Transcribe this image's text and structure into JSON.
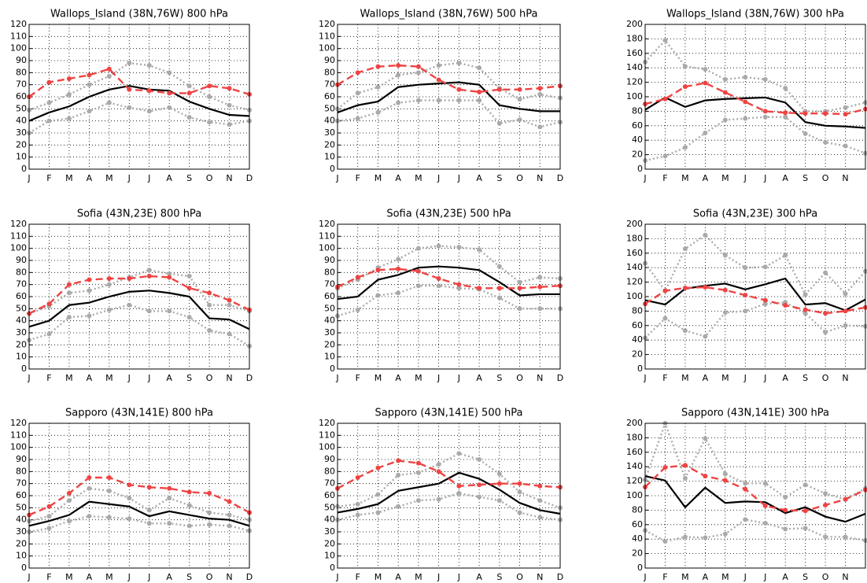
{
  "chart_data": [
    {
      "type": "line",
      "title": "Wallops_Island (38N,76W) 800 hPa",
      "categories": [
        "J",
        "F",
        "M",
        "A",
        "M",
        "J",
        "J",
        "A",
        "S",
        "O",
        "N",
        "D"
      ],
      "ylim": [
        0,
        120
      ],
      "yticks": [
        0,
        10,
        20,
        30,
        40,
        50,
        60,
        70,
        80,
        90,
        100,
        110,
        120
      ],
      "grid": true,
      "series": [
        {
          "color": "#aaaaaa",
          "style": "dotted",
          "markers": true,
          "values": [
            49,
            55,
            62,
            70,
            77,
            88,
            86,
            80,
            69,
            60,
            53,
            49
          ]
        },
        {
          "color": "#aaaaaa",
          "style": "dotted",
          "markers": true,
          "values": [
            30,
            40,
            42,
            48,
            55,
            51,
            48,
            51,
            43,
            39,
            37,
            40
          ]
        },
        {
          "color": "#000000",
          "style": "solid",
          "markers": false,
          "values": [
            40,
            47,
            52,
            60,
            66,
            69,
            66,
            65,
            56,
            50,
            45,
            44
          ]
        },
        {
          "color": "#ee4444",
          "style": "dashed",
          "markers": true,
          "values": [
            60,
            72,
            75,
            78,
            83,
            66,
            65,
            63,
            63,
            69,
            67,
            62
          ]
        }
      ]
    },
    {
      "type": "line",
      "title": "Wallops_Island (38N,76W) 500 hPa",
      "categories": [
        "J",
        "F",
        "M",
        "A",
        "M",
        "J",
        "J",
        "A",
        "S",
        "O",
        "N",
        "D"
      ],
      "ylim": [
        0,
        120
      ],
      "yticks": [
        0,
        10,
        20,
        30,
        40,
        50,
        60,
        70,
        80,
        90,
        100,
        110,
        120
      ],
      "grid": true,
      "series": [
        {
          "color": "#aaaaaa",
          "style": "dotted",
          "markers": true,
          "values": [
            50,
            63,
            68,
            78,
            80,
            86,
            88,
            84,
            67,
            58,
            62,
            59
          ]
        },
        {
          "color": "#aaaaaa",
          "style": "dotted",
          "markers": true,
          "values": [
            40,
            42,
            47,
            55,
            57,
            57,
            57,
            57,
            38,
            41,
            35,
            39
          ]
        },
        {
          "color": "#000000",
          "style": "solid",
          "markers": false,
          "values": [
            47,
            53,
            56,
            68,
            70,
            71,
            72,
            70,
            53,
            50,
            48,
            48
          ]
        },
        {
          "color": "#ee4444",
          "style": "dashed",
          "markers": true,
          "values": [
            70,
            80,
            85,
            86,
            85,
            74,
            66,
            64,
            66,
            66,
            67,
            69
          ]
        }
      ]
    },
    {
      "type": "line",
      "title": "Wallops_Island (38N,76W) 300 hPa",
      "categories": [
        "J",
        "F",
        "M",
        "A",
        "M",
        "J",
        "J",
        "A",
        "S",
        "O",
        "N",
        null
      ],
      "ylim": [
        0,
        200
      ],
      "yticks": [
        0,
        20,
        40,
        60,
        80,
        100,
        120,
        140,
        160,
        180,
        200
      ],
      "grid": true,
      "series": [
        {
          "color": "#aaaaaa",
          "style": "dotted",
          "markers": true,
          "values": [
            148,
            178,
            142,
            138,
            124,
            127,
            124,
            112,
            80,
            80,
            85,
            92
          ]
        },
        {
          "color": "#aaaaaa",
          "style": "dotted",
          "markers": true,
          "values": [
            12,
            18,
            30,
            50,
            68,
            70,
            72,
            72,
            49,
            37,
            32,
            22
          ]
        },
        {
          "color": "#000000",
          "style": "solid",
          "markers": false,
          "values": [
            82,
            99,
            86,
            95,
            97,
            98,
            99,
            92,
            65,
            60,
            59,
            57
          ]
        },
        {
          "color": "#ee4444",
          "style": "dashed",
          "markers": true,
          "values": [
            90,
            97,
            114,
            119,
            106,
            93,
            80,
            78,
            77,
            77,
            76,
            83
          ]
        }
      ]
    },
    {
      "type": "line",
      "title": "Sofia (43N,23E) 800 hPa",
      "categories": [
        "J",
        "F",
        "M",
        "A",
        "M",
        "J",
        "J",
        "A",
        "S",
        "O",
        "N",
        "D"
      ],
      "ylim": [
        0,
        120
      ],
      "yticks": [
        0,
        10,
        20,
        30,
        40,
        50,
        60,
        70,
        80,
        90,
        100,
        110,
        120
      ],
      "grid": true,
      "series": [
        {
          "color": "#aaaaaa",
          "style": "dotted",
          "markers": true,
          "values": [
            46,
            52,
            63,
            65,
            70,
            76,
            82,
            79,
            77,
            53,
            53,
            48
          ]
        },
        {
          "color": "#aaaaaa",
          "style": "dotted",
          "markers": true,
          "values": [
            24,
            29,
            43,
            44,
            49,
            53,
            48,
            48,
            43,
            32,
            29,
            19
          ]
        },
        {
          "color": "#000000",
          "style": "solid",
          "markers": false,
          "values": [
            35,
            40,
            53,
            55,
            60,
            64,
            65,
            63,
            60,
            42,
            41,
            33
          ]
        },
        {
          "color": "#ee4444",
          "style": "dashed",
          "markers": true,
          "values": [
            46,
            54,
            70,
            74,
            75,
            75,
            77,
            76,
            67,
            63,
            57,
            49
          ]
        }
      ]
    },
    {
      "type": "line",
      "title": "Sofia (43N,23E) 500 hPa",
      "categories": [
        "J",
        "F",
        "M",
        "A",
        "M",
        "J",
        "J",
        "A",
        "S",
        "O",
        "N",
        "D"
      ],
      "ylim": [
        0,
        120
      ],
      "yticks": [
        0,
        10,
        20,
        30,
        40,
        50,
        60,
        70,
        80,
        90,
        100,
        110,
        120
      ],
      "grid": true,
      "series": [
        {
          "color": "#aaaaaa",
          "style": "dotted",
          "markers": true,
          "values": [
            67,
            74,
            84,
            91,
            100,
            102,
            101,
            99,
            85,
            72,
            76,
            75
          ]
        },
        {
          "color": "#aaaaaa",
          "style": "dotted",
          "markers": true,
          "values": [
            44,
            49,
            61,
            63,
            69,
            69,
            67,
            66,
            59,
            50,
            50,
            50
          ]
        },
        {
          "color": "#000000",
          "style": "solid",
          "markers": false,
          "values": [
            58,
            60,
            74,
            78,
            84,
            85,
            84,
            82,
            72,
            61,
            62,
            62
          ]
        },
        {
          "color": "#ee4444",
          "style": "dashed",
          "markers": true,
          "values": [
            68,
            76,
            82,
            83,
            81,
            75,
            70,
            67,
            67,
            67,
            68,
            69
          ]
        }
      ]
    },
    {
      "type": "line",
      "title": "Sofia (43N,23E) 300 hPa",
      "categories": [
        "J",
        "F",
        "M",
        "A",
        "M",
        "J",
        "J",
        "A",
        "S",
        "O",
        "N",
        null
      ],
      "ylim": [
        0,
        200
      ],
      "yticks": [
        0,
        20,
        40,
        60,
        80,
        100,
        120,
        140,
        160,
        180,
        200
      ],
      "grid": true,
      "series": [
        {
          "color": "#aaaaaa",
          "style": "dotted",
          "markers": true,
          "values": [
            146,
            108,
            166,
            185,
            157,
            140,
            141,
            157,
            103,
            133,
            104,
            135
          ]
        },
        {
          "color": "#aaaaaa",
          "style": "dotted",
          "markers": true,
          "values": [
            43,
            70,
            53,
            45,
            78,
            80,
            90,
            92,
            77,
            51,
            60,
            59
          ]
        },
        {
          "color": "#000000",
          "style": "solid",
          "markers": false,
          "values": [
            95,
            89,
            111,
            115,
            118,
            110,
            117,
            125,
            89,
            91,
            81,
            96
          ]
        },
        {
          "color": "#ee4444",
          "style": "dashed",
          "markers": true,
          "values": [
            90,
            108,
            112,
            113,
            109,
            102,
            95,
            88,
            82,
            77,
            80,
            85
          ]
        }
      ]
    },
    {
      "type": "line",
      "title": "Sapporo (43N,141E) 800 hPa",
      "categories": [
        "J",
        "F",
        "M",
        "A",
        "M",
        "J",
        "J",
        "A",
        "S",
        "O",
        "N",
        "D"
      ],
      "ylim": [
        0,
        120
      ],
      "yticks": [
        0,
        10,
        20,
        30,
        40,
        50,
        60,
        70,
        80,
        90,
        100,
        110,
        120
      ],
      "grid": true,
      "series": [
        {
          "color": "#aaaaaa",
          "style": "dotted",
          "markers": true,
          "values": [
            39,
            43,
            56,
            66,
            64,
            58,
            48,
            58,
            52,
            46,
            44,
            40
          ]
        },
        {
          "color": "#aaaaaa",
          "style": "dotted",
          "markers": true,
          "values": [
            30,
            33,
            39,
            43,
            42,
            41,
            37,
            37,
            35,
            36,
            35,
            31
          ]
        },
        {
          "color": "#000000",
          "style": "solid",
          "markers": false,
          "values": [
            35,
            39,
            44,
            55,
            53,
            51,
            43,
            47,
            44,
            41,
            40,
            35
          ]
        },
        {
          "color": "#ee4444",
          "style": "dashed",
          "markers": true,
          "values": [
            44,
            51,
            62,
            75,
            75,
            69,
            67,
            66,
            63,
            62,
            55,
            46
          ]
        }
      ]
    },
    {
      "type": "line",
      "title": "Sapporo (43N,141E) 500 hPa",
      "categories": [
        "J",
        "F",
        "M",
        "A",
        "M",
        "J",
        "J",
        "A",
        "S",
        "O",
        "N",
        "D"
      ],
      "ylim": [
        0,
        120
      ],
      "yticks": [
        0,
        10,
        20,
        30,
        40,
        50,
        60,
        70,
        80,
        90,
        100,
        110,
        120
      ],
      "grid": true,
      "series": [
        {
          "color": "#aaaaaa",
          "style": "dotted",
          "markers": true,
          "values": [
            51,
            53,
            61,
            77,
            79,
            86,
            95,
            90,
            78,
            63,
            56,
            50
          ]
        },
        {
          "color": "#aaaaaa",
          "style": "dotted",
          "markers": true,
          "values": [
            40,
            44,
            46,
            51,
            56,
            57,
            62,
            59,
            56,
            46,
            42,
            40
          ]
        },
        {
          "color": "#000000",
          "style": "solid",
          "markers": false,
          "values": [
            46,
            49,
            53,
            64,
            67,
            70,
            79,
            74,
            65,
            54,
            48,
            45
          ]
        },
        {
          "color": "#ee4444",
          "style": "dashed",
          "markers": true,
          "values": [
            66,
            75,
            83,
            89,
            87,
            80,
            68,
            69,
            70,
            70,
            68,
            67
          ]
        }
      ]
    },
    {
      "type": "line",
      "title": "Sapporo (43N,141E) 300 hPa",
      "categories": [
        "J",
        "F",
        "M",
        "A",
        "M",
        "J",
        "J",
        "A",
        "S",
        "O",
        "N",
        null
      ],
      "ylim": [
        0,
        200
      ],
      "yticks": [
        0,
        20,
        40,
        60,
        80,
        100,
        120,
        140,
        160,
        180,
        200
      ],
      "grid": true,
      "series": [
        {
          "color": "#aaaaaa",
          "style": "dotted",
          "markers": true,
          "values": [
            122,
            200,
            124,
            179,
            130,
            117,
            117,
            98,
            115,
            103,
            95,
            110
          ]
        },
        {
          "color": "#aaaaaa",
          "style": "dotted",
          "markers": true,
          "values": [
            52,
            37,
            43,
            42,
            47,
            67,
            62,
            54,
            55,
            43,
            43,
            38
          ]
        },
        {
          "color": "#000000",
          "style": "solid",
          "markers": false,
          "values": [
            127,
            121,
            84,
            111,
            90,
            92,
            91,
            76,
            84,
            71,
            64,
            75
          ]
        },
        {
          "color": "#ee4444",
          "style": "dashed",
          "markers": true,
          "values": [
            112,
            139,
            142,
            127,
            121,
            109,
            86,
            80,
            79,
            87,
            95,
            108
          ]
        }
      ]
    }
  ]
}
